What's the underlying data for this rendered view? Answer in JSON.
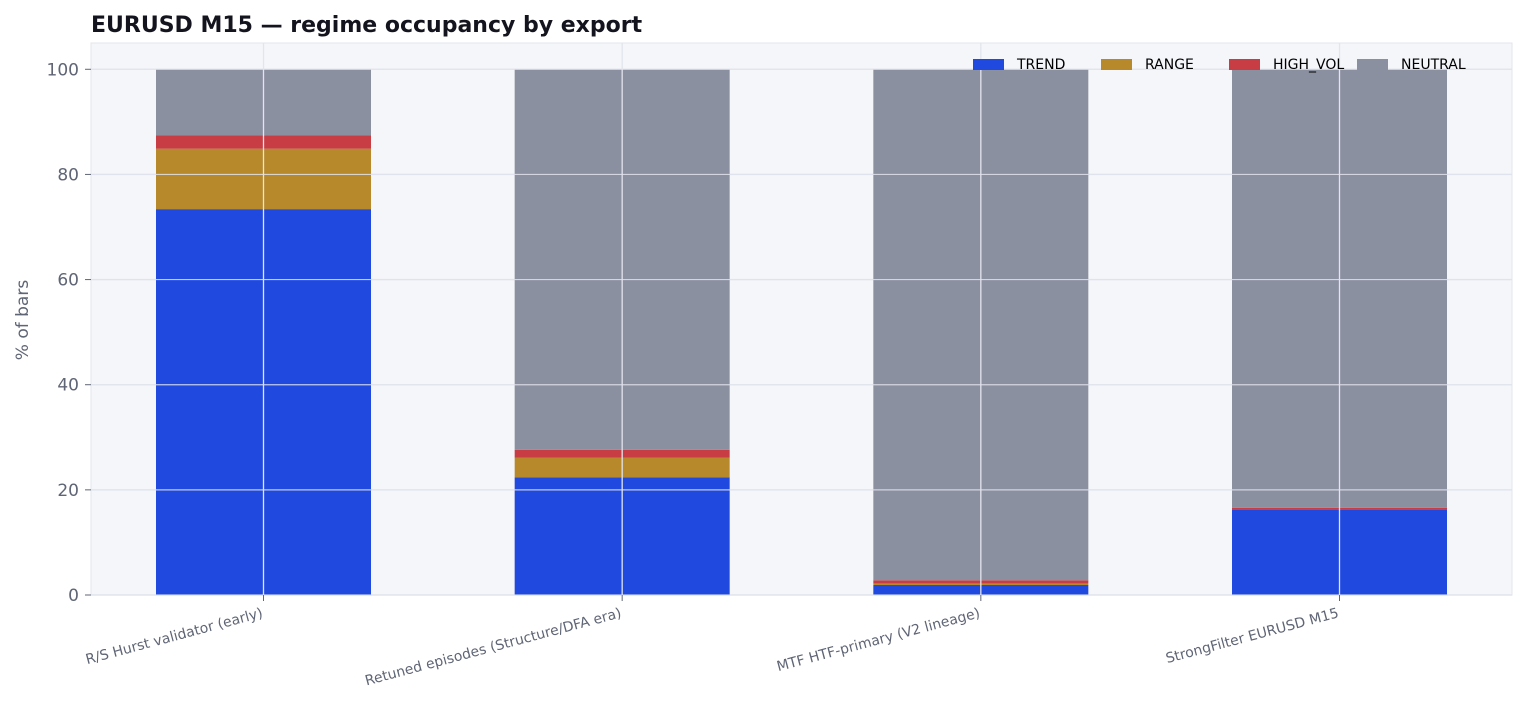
{
  "chart_data": {
    "type": "bar",
    "stacked": true,
    "title": "EURUSD M15 — regime occupancy by export",
    "xlabel": "",
    "ylabel": "% of bars",
    "ylim": [
      0,
      105
    ],
    "yticks": [
      0,
      20,
      40,
      60,
      80,
      100
    ],
    "grid": true,
    "legend_position": "top-right",
    "categories": [
      "R/S Hurst validator (early)",
      "Retuned episodes (Structure/DFA era)",
      "MTF HTF-primary (V2 lineage)",
      "StrongFilter EURUSD M15"
    ],
    "series": [
      {
        "name": "TREND",
        "color": "#2049e0",
        "values": [
          73.4,
          22.4,
          1.9,
          16.3
        ]
      },
      {
        "name": "RANGE",
        "color": "#b8892a",
        "values": [
          11.5,
          3.7,
          0.3,
          0.0
        ]
      },
      {
        "name": "HIGH_VOL",
        "color": "#c83c44",
        "values": [
          2.5,
          1.5,
          0.6,
          0.3
        ]
      },
      {
        "name": "NEUTRAL",
        "color": "#8b90a0",
        "values": [
          12.6,
          72.4,
          97.2,
          83.4
        ]
      }
    ]
  }
}
